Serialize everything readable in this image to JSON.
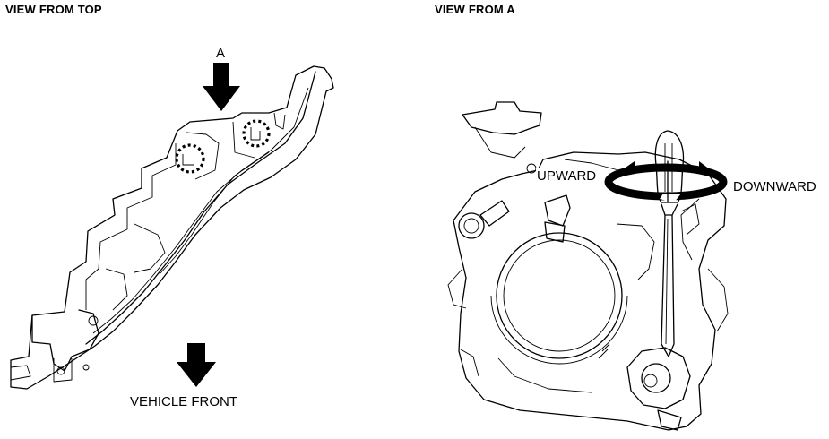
{
  "left_view": {
    "heading": "VIEW FROM TOP",
    "arrow_label_a": "A",
    "front_label": "VEHICLE FRONT"
  },
  "right_view": {
    "heading": "VIEW FROM A",
    "upward_label": "UPWARD",
    "downward_label": "DOWNWARD"
  },
  "icons": [
    "arrow-down-icon",
    "rotation-arrow-icon",
    "screwdriver-icon",
    "dotted-circle-marker-icon"
  ]
}
